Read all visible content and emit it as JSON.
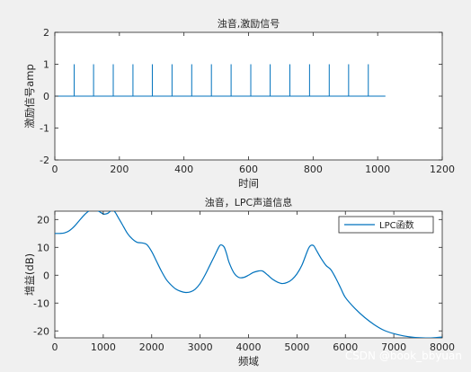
{
  "watermark": "CSDN @book_bbyuan",
  "chart_data": [
    {
      "type": "line",
      "title": "浊音,激励信号",
      "xlabel": "时间",
      "ylabel": "激励信号amp",
      "xlim": [
        0,
        1200
      ],
      "ylim": [
        -2,
        2
      ],
      "xticks": [
        "0",
        "200",
        "400",
        "600",
        "800",
        "1000",
        "1200"
      ],
      "yticks": [
        "-2",
        "-1",
        "0",
        "1",
        "2"
      ],
      "grid": false,
      "color": "#0072bd",
      "baseline": 0,
      "x_start": 1,
      "x_end": 1024,
      "pulse_height": 1,
      "pulse_positions": [
        60,
        120,
        181,
        242,
        302,
        363,
        424,
        485,
        546,
        607,
        667,
        728,
        789,
        850,
        910,
        971
      ]
    },
    {
      "type": "line",
      "title": "浊音，LPC声道信息",
      "xlabel": "频域",
      "ylabel": "增益(dB)",
      "xlim": [
        0,
        8000
      ],
      "ylim": [
        -22.5,
        23
      ],
      "xticks": [
        "0",
        "1000",
        "2000",
        "3000",
        "4000",
        "5000",
        "6000",
        "7000",
        "8000"
      ],
      "yticks": [
        "-20",
        "-10",
        "0",
        "10",
        "20"
      ],
      "grid": false,
      "color": "#0072bd",
      "legend": {
        "position": "top-right",
        "entries": [
          "LPC函数"
        ]
      },
      "series": [
        {
          "name": "LPC函数",
          "x": [
            0,
            100,
            200,
            300,
            400,
            500,
            600,
            700,
            800,
            900,
            1000,
            1050,
            1100,
            1150,
            1200,
            1250,
            1300,
            1350,
            1400,
            1500,
            1600,
            1700,
            1800,
            1900,
            2000,
            2100,
            2200,
            2300,
            2400,
            2500,
            2600,
            2700,
            2800,
            2900,
            3000,
            3100,
            3200,
            3300,
            3400,
            3450,
            3500,
            3550,
            3600,
            3700,
            3800,
            3900,
            4000,
            4100,
            4200,
            4250,
            4300,
            4400,
            4500,
            4600,
            4700,
            4800,
            4900,
            5000,
            5100,
            5200,
            5250,
            5300,
            5350,
            5400,
            5500,
            5600,
            5700,
            5800,
            5900,
            6000,
            6200,
            6400,
            6600,
            6800,
            7000,
            7200,
            7400,
            7600,
            7800,
            8000
          ],
          "y": [
            15,
            15,
            15.2,
            16,
            17.5,
            19.5,
            21.5,
            23,
            23.5,
            23,
            22,
            22,
            22.3,
            23,
            23.3,
            22.5,
            21,
            19.5,
            18,
            15,
            13,
            11.8,
            11.6,
            11,
            8.5,
            5,
            1.5,
            -1.5,
            -3.5,
            -5,
            -5.8,
            -6.2,
            -6,
            -5,
            -3,
            0,
            3.5,
            7,
            10.5,
            10.8,
            10,
            7.5,
            4.5,
            0.8,
            -0.8,
            -0.8,
            0,
            1,
            1.5,
            1.6,
            1.4,
            0,
            -1.5,
            -2.5,
            -3,
            -2.6,
            -1.5,
            0.5,
            3.5,
            8,
            10,
            10.8,
            10.5,
            9,
            6,
            3.5,
            2,
            -1,
            -4.5,
            -8,
            -12,
            -15.2,
            -17.8,
            -19.8,
            -21,
            -21.8,
            -22.3,
            -22.5,
            -22.5,
            -22.2
          ]
        }
      ]
    }
  ]
}
